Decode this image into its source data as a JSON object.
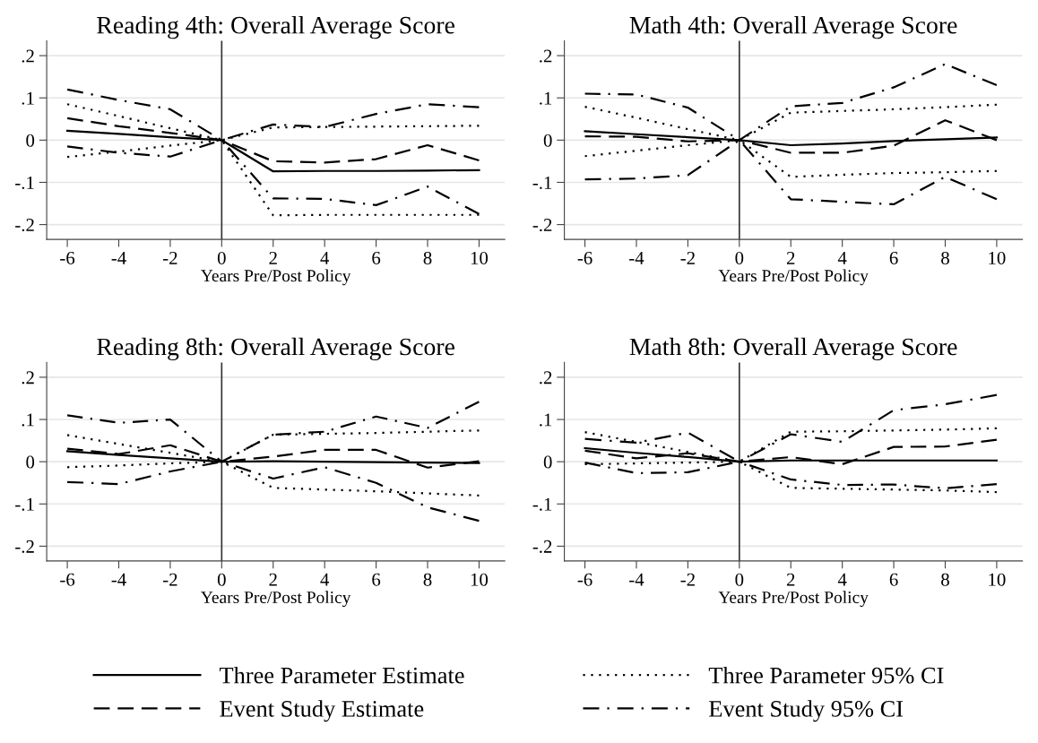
{
  "chart_data": [
    {
      "type": "line",
      "title": "Reading 4th: Overall Average Score",
      "xlabel": "Years Pre/Post Policy",
      "x": [
        -6,
        -4,
        -2,
        0,
        2,
        4,
        6,
        8,
        10
      ],
      "xlim": [
        -6.8,
        11
      ],
      "xticks": [
        -6,
        -4,
        -2,
        0,
        2,
        4,
        6,
        8,
        10
      ],
      "ylim": [
        -0.235,
        0.235
      ],
      "yticks": [
        {
          "value": -0.2,
          "label": "-.2"
        },
        {
          "value": -0.1,
          "label": "-.1"
        },
        0,
        {
          "value": 0.1,
          "label": ".1"
        },
        {
          "value": 0.2,
          "label": ".2"
        }
      ],
      "grid": "y",
      "legend": "bottom",
      "ref_lines": [
        {
          "axis": "x",
          "value": 0,
          "color": "#333333",
          "line_style": "solid"
        }
      ],
      "series": [
        {
          "name": "Three Parameter Estimate",
          "color": "#000000",
          "line_style": "solid",
          "values": [
            0.022,
            0.015,
            0.007,
            0,
            -0.074,
            -0.073,
            -0.073,
            -0.072,
            -0.071
          ]
        },
        {
          "name": "Event Study Estimate",
          "color": "#000000",
          "line_style": "dashed",
          "values": [
            0.052,
            0.033,
            0.017,
            0,
            -0.05,
            -0.053,
            -0.045,
            -0.012,
            -0.048
          ]
        },
        {
          "name": "Three Parameter 95% CI",
          "color": "#000000",
          "line_style": "dotted",
          "values": [
            0.085,
            0.057,
            0.028,
            0,
            0.03,
            0.031,
            0.032,
            0.033,
            0.034
          ]
        },
        {
          "name": "Event Study 95% CI",
          "color": "#000000",
          "line_style": "dashdot",
          "values": [
            0.12,
            0.095,
            0.073,
            0,
            0.037,
            0.031,
            0.062,
            0.085,
            0.078
          ]
        },
        {
          "color": "#000000",
          "line_style": "dotted",
          "values": [
            -0.04,
            -0.027,
            -0.013,
            0,
            -0.178,
            -0.177,
            -0.177,
            -0.177,
            -0.177
          ]
        },
        {
          "color": "#000000",
          "line_style": "dashdot",
          "values": [
            -0.015,
            -0.03,
            -0.039,
            0,
            -0.138,
            -0.139,
            -0.154,
            -0.11,
            -0.175
          ]
        }
      ]
    },
    {
      "type": "line",
      "title": "Math 4th: Overall Average Score",
      "xlabel": "Years Pre/Post Policy",
      "x": [
        -6,
        -4,
        -2,
        0,
        2,
        4,
        6,
        8,
        10
      ],
      "xlim": [
        -6.8,
        11
      ],
      "xticks": [
        -6,
        -4,
        -2,
        0,
        2,
        4,
        6,
        8,
        10
      ],
      "ylim": [
        -0.235,
        0.235
      ],
      "yticks": [
        {
          "value": -0.2,
          "label": "-.2"
        },
        {
          "value": -0.1,
          "label": "-.1"
        },
        0,
        {
          "value": 0.1,
          "label": ".1"
        },
        {
          "value": 0.2,
          "label": ".2"
        }
      ],
      "grid": "y",
      "ref_lines": [
        {
          "axis": "x",
          "value": 0,
          "color": "#333333",
          "line_style": "solid"
        }
      ],
      "series": [
        {
          "color": "#000000",
          "line_style": "solid",
          "values": [
            0.021,
            0.014,
            0.007,
            0,
            -0.012,
            -0.008,
            -0.002,
            0.002,
            0.006
          ]
        },
        {
          "color": "#000000",
          "line_style": "dashed",
          "values": [
            0.009,
            0.008,
            -0.003,
            0,
            -0.03,
            -0.03,
            -0.013,
            0.047,
            0.0
          ]
        },
        {
          "color": "#000000",
          "line_style": "dotted",
          "values": [
            0.079,
            0.053,
            0.026,
            0,
            0.065,
            0.069,
            0.073,
            0.078,
            0.084
          ]
        },
        {
          "color": "#000000",
          "line_style": "dashdot",
          "values": [
            0.11,
            0.108,
            0.077,
            0,
            0.08,
            0.088,
            0.125,
            0.18,
            0.13
          ]
        },
        {
          "color": "#000000",
          "line_style": "dotted",
          "values": [
            -0.038,
            -0.025,
            -0.012,
            0,
            -0.087,
            -0.082,
            -0.078,
            -0.076,
            -0.073
          ]
        },
        {
          "color": "#000000",
          "line_style": "dashdot",
          "values": [
            -0.093,
            -0.091,
            -0.083,
            0,
            -0.14,
            -0.146,
            -0.152,
            -0.087,
            -0.14
          ]
        }
      ]
    },
    {
      "type": "line",
      "title": "Reading 8th: Overall Average Score",
      "xlabel": "Years Pre/Post Policy",
      "x": [
        -6,
        -4,
        -2,
        0,
        2,
        4,
        6,
        8,
        10
      ],
      "xlim": [
        -6.8,
        11
      ],
      "xticks": [
        -6,
        -4,
        -2,
        0,
        2,
        4,
        6,
        8,
        10
      ],
      "ylim": [
        -0.235,
        0.235
      ],
      "yticks": [
        {
          "value": -0.2,
          "label": "-.2"
        },
        {
          "value": -0.1,
          "label": "-.1"
        },
        0,
        {
          "value": 0.1,
          "label": ".1"
        },
        {
          "value": 0.2,
          "label": ".2"
        }
      ],
      "grid": "y",
      "ref_lines": [
        {
          "axis": "x",
          "value": 0,
          "color": "#333333",
          "line_style": "solid"
        }
      ],
      "series": [
        {
          "color": "#000000",
          "line_style": "solid",
          "values": [
            0.025,
            0.016,
            0.008,
            0,
            0.001,
            0.0,
            -0.001,
            -0.002,
            -0.003
          ]
        },
        {
          "color": "#000000",
          "line_style": "dashed",
          "values": [
            0.031,
            0.018,
            0.039,
            0,
            0.012,
            0.028,
            0.028,
            -0.014,
            0.001
          ]
        },
        {
          "color": "#000000",
          "line_style": "dotted",
          "values": [
            0.063,
            0.042,
            0.021,
            0,
            0.064,
            0.066,
            0.068,
            0.071,
            0.074
          ]
        },
        {
          "color": "#000000",
          "line_style": "dashdot",
          "values": [
            0.11,
            0.092,
            0.1,
            0,
            0.064,
            0.071,
            0.107,
            0.08,
            0.142
          ]
        },
        {
          "color": "#000000",
          "line_style": "dotted",
          "values": [
            -0.013,
            -0.009,
            -0.004,
            0,
            -0.062,
            -0.066,
            -0.07,
            -0.075,
            -0.08
          ]
        },
        {
          "color": "#000000",
          "line_style": "dashdot",
          "values": [
            -0.048,
            -0.053,
            -0.023,
            0,
            -0.04,
            -0.013,
            -0.05,
            -0.108,
            -0.14
          ]
        }
      ]
    },
    {
      "type": "line",
      "title": "Math 8th: Overall Average Score",
      "xlabel": "Years Pre/Post Policy",
      "x": [
        -6,
        -4,
        -2,
        0,
        2,
        4,
        6,
        8,
        10
      ],
      "xlim": [
        -6.8,
        11
      ],
      "xticks": [
        -6,
        -4,
        -2,
        0,
        2,
        4,
        6,
        8,
        10
      ],
      "ylim": [
        -0.235,
        0.235
      ],
      "yticks": [
        {
          "value": -0.2,
          "label": "-.2"
        },
        {
          "value": -0.1,
          "label": "-.1"
        },
        0,
        {
          "value": 0.1,
          "label": ".1"
        },
        {
          "value": 0.2,
          "label": ".2"
        }
      ],
      "grid": "y",
      "ref_lines": [
        {
          "axis": "x",
          "value": 0,
          "color": "#333333",
          "line_style": "solid"
        }
      ],
      "series": [
        {
          "color": "#000000",
          "line_style": "solid",
          "values": [
            0.032,
            0.021,
            0.011,
            0,
            0.003,
            0.003,
            0.003,
            0.003,
            0.003
          ]
        },
        {
          "color": "#000000",
          "line_style": "dashed",
          "values": [
            0.026,
            0.008,
            0.02,
            0,
            0.011,
            -0.006,
            0.035,
            0.036,
            0.052
          ]
        },
        {
          "color": "#000000",
          "line_style": "dotted",
          "values": [
            0.07,
            0.047,
            0.023,
            0,
            0.071,
            0.072,
            0.074,
            0.076,
            0.079
          ]
        },
        {
          "color": "#000000",
          "line_style": "dashdot",
          "values": [
            0.054,
            0.045,
            0.069,
            0,
            0.065,
            0.047,
            0.122,
            0.136,
            0.158
          ]
        },
        {
          "color": "#000000",
          "line_style": "dotted",
          "values": [
            -0.006,
            -0.004,
            -0.002,
            0,
            -0.062,
            -0.064,
            -0.066,
            -0.068,
            -0.072
          ]
        },
        {
          "color": "#000000",
          "line_style": "dashdot",
          "values": [
            -0.002,
            -0.027,
            -0.025,
            0,
            -0.042,
            -0.055,
            -0.054,
            -0.063,
            -0.053
          ]
        }
      ]
    }
  ]
}
